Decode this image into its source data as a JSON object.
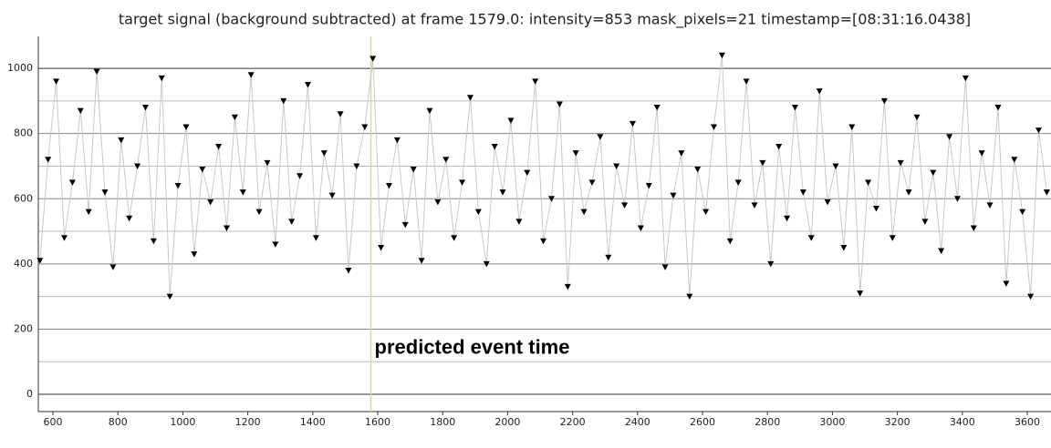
{
  "chart_data": {
    "type": "scatter-line",
    "title": "target signal (background subtracted) at frame 1579.0: intensity=853 mask_pixels=21 timestamp=[08:31:16.0438]",
    "annotation": {
      "text": "predicted event time",
      "x": 1579
    },
    "x": [
      560,
      585,
      610,
      635,
      660,
      685,
      710,
      735,
      760,
      785,
      810,
      835,
      860,
      885,
      910,
      935,
      960,
      985,
      1010,
      1035,
      1060,
      1085,
      1110,
      1135,
      1160,
      1185,
      1210,
      1235,
      1260,
      1285,
      1310,
      1335,
      1360,
      1385,
      1410,
      1435,
      1460,
      1485,
      1510,
      1535,
      1560,
      1585,
      1610,
      1635,
      1660,
      1685,
      1710,
      1735,
      1760,
      1785,
      1810,
      1835,
      1860,
      1885,
      1910,
      1935,
      1960,
      1985,
      2010,
      2035,
      2060,
      2085,
      2110,
      2135,
      2160,
      2185,
      2210,
      2235,
      2260,
      2285,
      2310,
      2335,
      2360,
      2385,
      2410,
      2435,
      2460,
      2485,
      2510,
      2535,
      2560,
      2585,
      2610,
      2635,
      2660,
      2685,
      2710,
      2735,
      2760,
      2785,
      2810,
      2835,
      2860,
      2885,
      2910,
      2935,
      2960,
      2985,
      3010,
      3035,
      3060,
      3085,
      3110,
      3135,
      3160,
      3185,
      3210,
      3235,
      3260,
      3285,
      3310,
      3335,
      3360,
      3385,
      3410,
      3435,
      3460,
      3485,
      3510,
      3535,
      3560,
      3585,
      3610,
      3635,
      3660
    ],
    "values": [
      410,
      720,
      960,
      480,
      650,
      870,
      560,
      990,
      620,
      390,
      780,
      540,
      700,
      880,
      470,
      970,
      300,
      640,
      820,
      430,
      690,
      590,
      760,
      510,
      850,
      620,
      980,
      560,
      710,
      460,
      900,
      530,
      670,
      950,
      480,
      740,
      610,
      860,
      380,
      700,
      820,
      1030,
      450,
      640,
      780,
      520,
      690,
      410,
      870,
      590,
      720,
      480,
      650,
      910,
      560,
      400,
      760,
      620,
      840,
      530,
      680,
      960,
      470,
      600,
      890,
      330,
      740,
      560,
      650,
      790,
      420,
      700,
      580,
      830,
      510,
      640,
      880,
      390,
      610,
      740,
      300,
      690,
      560,
      820,
      1040,
      470,
      650,
      960,
      580,
      710,
      400,
      760,
      540,
      880,
      620,
      480,
      930,
      590,
      700,
      450,
      820,
      310,
      650,
      570,
      900,
      480,
      710,
      620,
      850,
      530,
      680,
      440,
      790,
      600,
      970,
      510,
      740,
      580,
      880,
      340,
      720,
      560,
      300,
      810,
      620
    ],
    "marker_color": "#000000",
    "line_color": "#c8c8c8",
    "event_line_color": "#d8d8a0",
    "xlim": [
      555,
      3673
    ],
    "ylim": [
      -53,
      1098
    ],
    "xticks": [
      600,
      800,
      1000,
      1200,
      1400,
      1600,
      1800,
      2000,
      2200,
      2400,
      2600,
      2800,
      3000,
      3200,
      3400,
      3600
    ],
    "yticks": [
      0,
      200,
      400,
      600,
      800,
      1000
    ],
    "yminorticks": [
      100,
      300,
      500,
      700,
      900
    ],
    "grid": true
  }
}
